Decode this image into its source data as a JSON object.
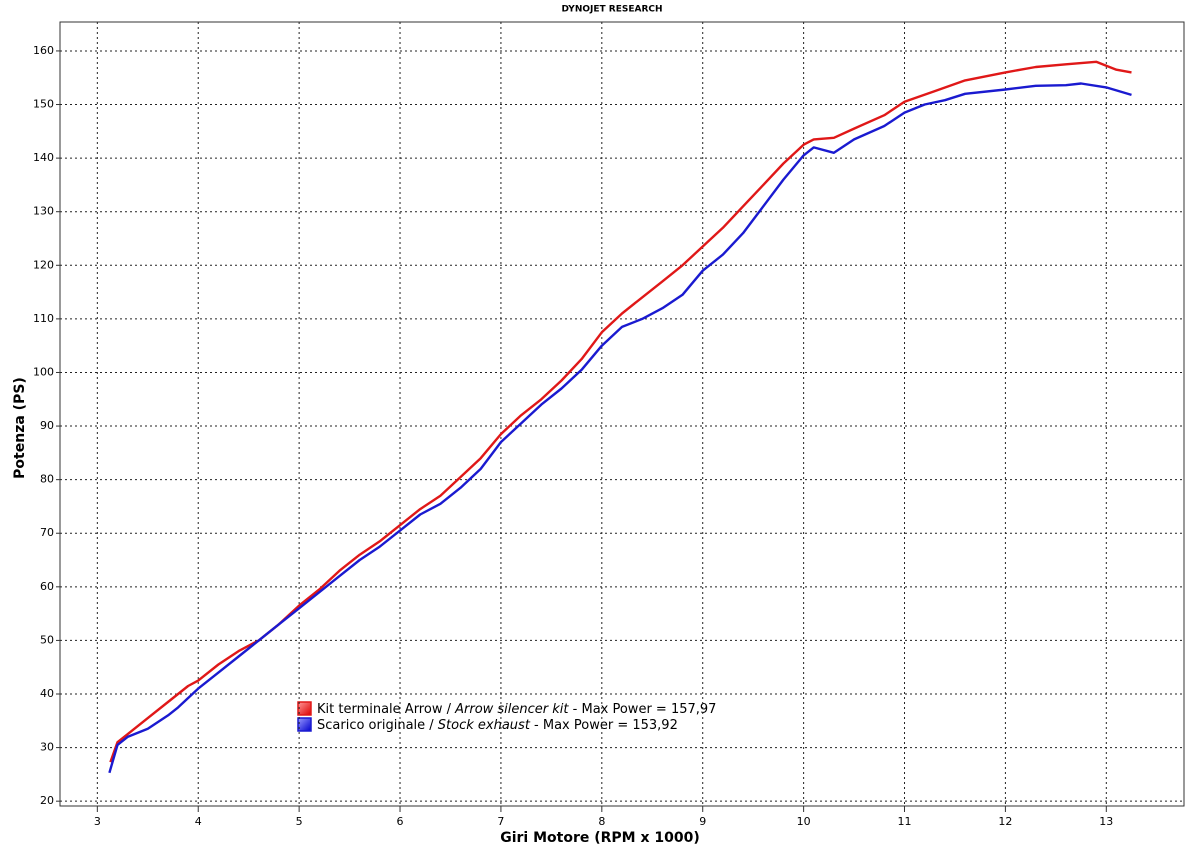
{
  "chart_data": {
    "type": "line",
    "title": "DYNOJET RESEARCH",
    "x_label": "Giri Motore (RPM x 1000)",
    "y_label": "Potenza (PS)",
    "xlim": [
      2.63,
      13.77
    ],
    "ylim": [
      19.1,
      165.4
    ],
    "xticks": [
      3,
      4,
      5,
      6,
      7,
      8,
      9,
      10,
      11,
      12,
      13
    ],
    "yticks": [
      20,
      30,
      40,
      50,
      60,
      70,
      80,
      90,
      100,
      110,
      120,
      130,
      140,
      150,
      160
    ],
    "grid": true,
    "series": [
      {
        "legend_parts": [
          "Kit terminale Arrow / ",
          "Arrow silencer kit",
          " - Max Power = 157,97"
        ],
        "color": "#e01818",
        "x": [
          3.13,
          3.2,
          3.3,
          3.5,
          3.7,
          3.9,
          4.0,
          4.2,
          4.4,
          4.6,
          4.8,
          5.0,
          5.2,
          5.4,
          5.6,
          5.8,
          6.0,
          6.2,
          6.4,
          6.6,
          6.8,
          7.0,
          7.2,
          7.4,
          7.6,
          7.8,
          8.0,
          8.2,
          8.4,
          8.6,
          8.8,
          9.0,
          9.2,
          9.4,
          9.6,
          9.8,
          10.0,
          10.1,
          10.3,
          10.5,
          10.8,
          11.0,
          11.3,
          11.6,
          12.0,
          12.3,
          12.6,
          12.9,
          13.1,
          13.25
        ],
        "values": [
          27.3,
          31,
          32.5,
          35.5,
          38.5,
          41.5,
          42.5,
          45.5,
          48,
          50,
          53,
          56.5,
          59.5,
          63,
          66,
          68.5,
          71.5,
          74.5,
          77,
          80.5,
          84,
          88.5,
          92,
          95,
          98.5,
          102.5,
          107.5,
          111,
          114,
          117,
          120,
          123.5,
          127,
          131,
          135,
          139,
          142.5,
          143.5,
          143.8,
          145.5,
          148,
          150.5,
          152.5,
          154.5,
          156,
          157,
          157.5,
          157.97,
          156.5,
          156
        ]
      },
      {
        "legend_parts": [
          "Scarico originale / ",
          "Stock exhaust",
          " - Max Power = 153,92"
        ],
        "color": "#1a1ad0",
        "x": [
          3.12,
          3.2,
          3.3,
          3.5,
          3.7,
          3.8,
          4.0,
          4.2,
          4.4,
          4.6,
          4.8,
          5.0,
          5.2,
          5.4,
          5.6,
          5.8,
          6.0,
          6.2,
          6.4,
          6.6,
          6.8,
          7.0,
          7.2,
          7.4,
          7.6,
          7.8,
          8.0,
          8.2,
          8.4,
          8.6,
          8.8,
          9.0,
          9.2,
          9.4,
          9.6,
          9.8,
          10.0,
          10.1,
          10.3,
          10.5,
          10.8,
          11.0,
          11.2,
          11.4,
          11.6,
          12.0,
          12.3,
          12.6,
          12.75,
          13.0,
          13.25
        ],
        "values": [
          25.3,
          30.5,
          32,
          33.5,
          36,
          37.5,
          41,
          44,
          47,
          50,
          53,
          56,
          59,
          62,
          65,
          67.5,
          70.5,
          73.5,
          75.5,
          78.5,
          82,
          87,
          90.5,
          94,
          97,
          100.5,
          105,
          108.5,
          110,
          112,
          114.5,
          119,
          122,
          126,
          131,
          136,
          140.5,
          142,
          141,
          143.5,
          146,
          148.5,
          150,
          150.8,
          152,
          152.8,
          153.5,
          153.6,
          153.92,
          153.2,
          151.8
        ]
      }
    ]
  }
}
